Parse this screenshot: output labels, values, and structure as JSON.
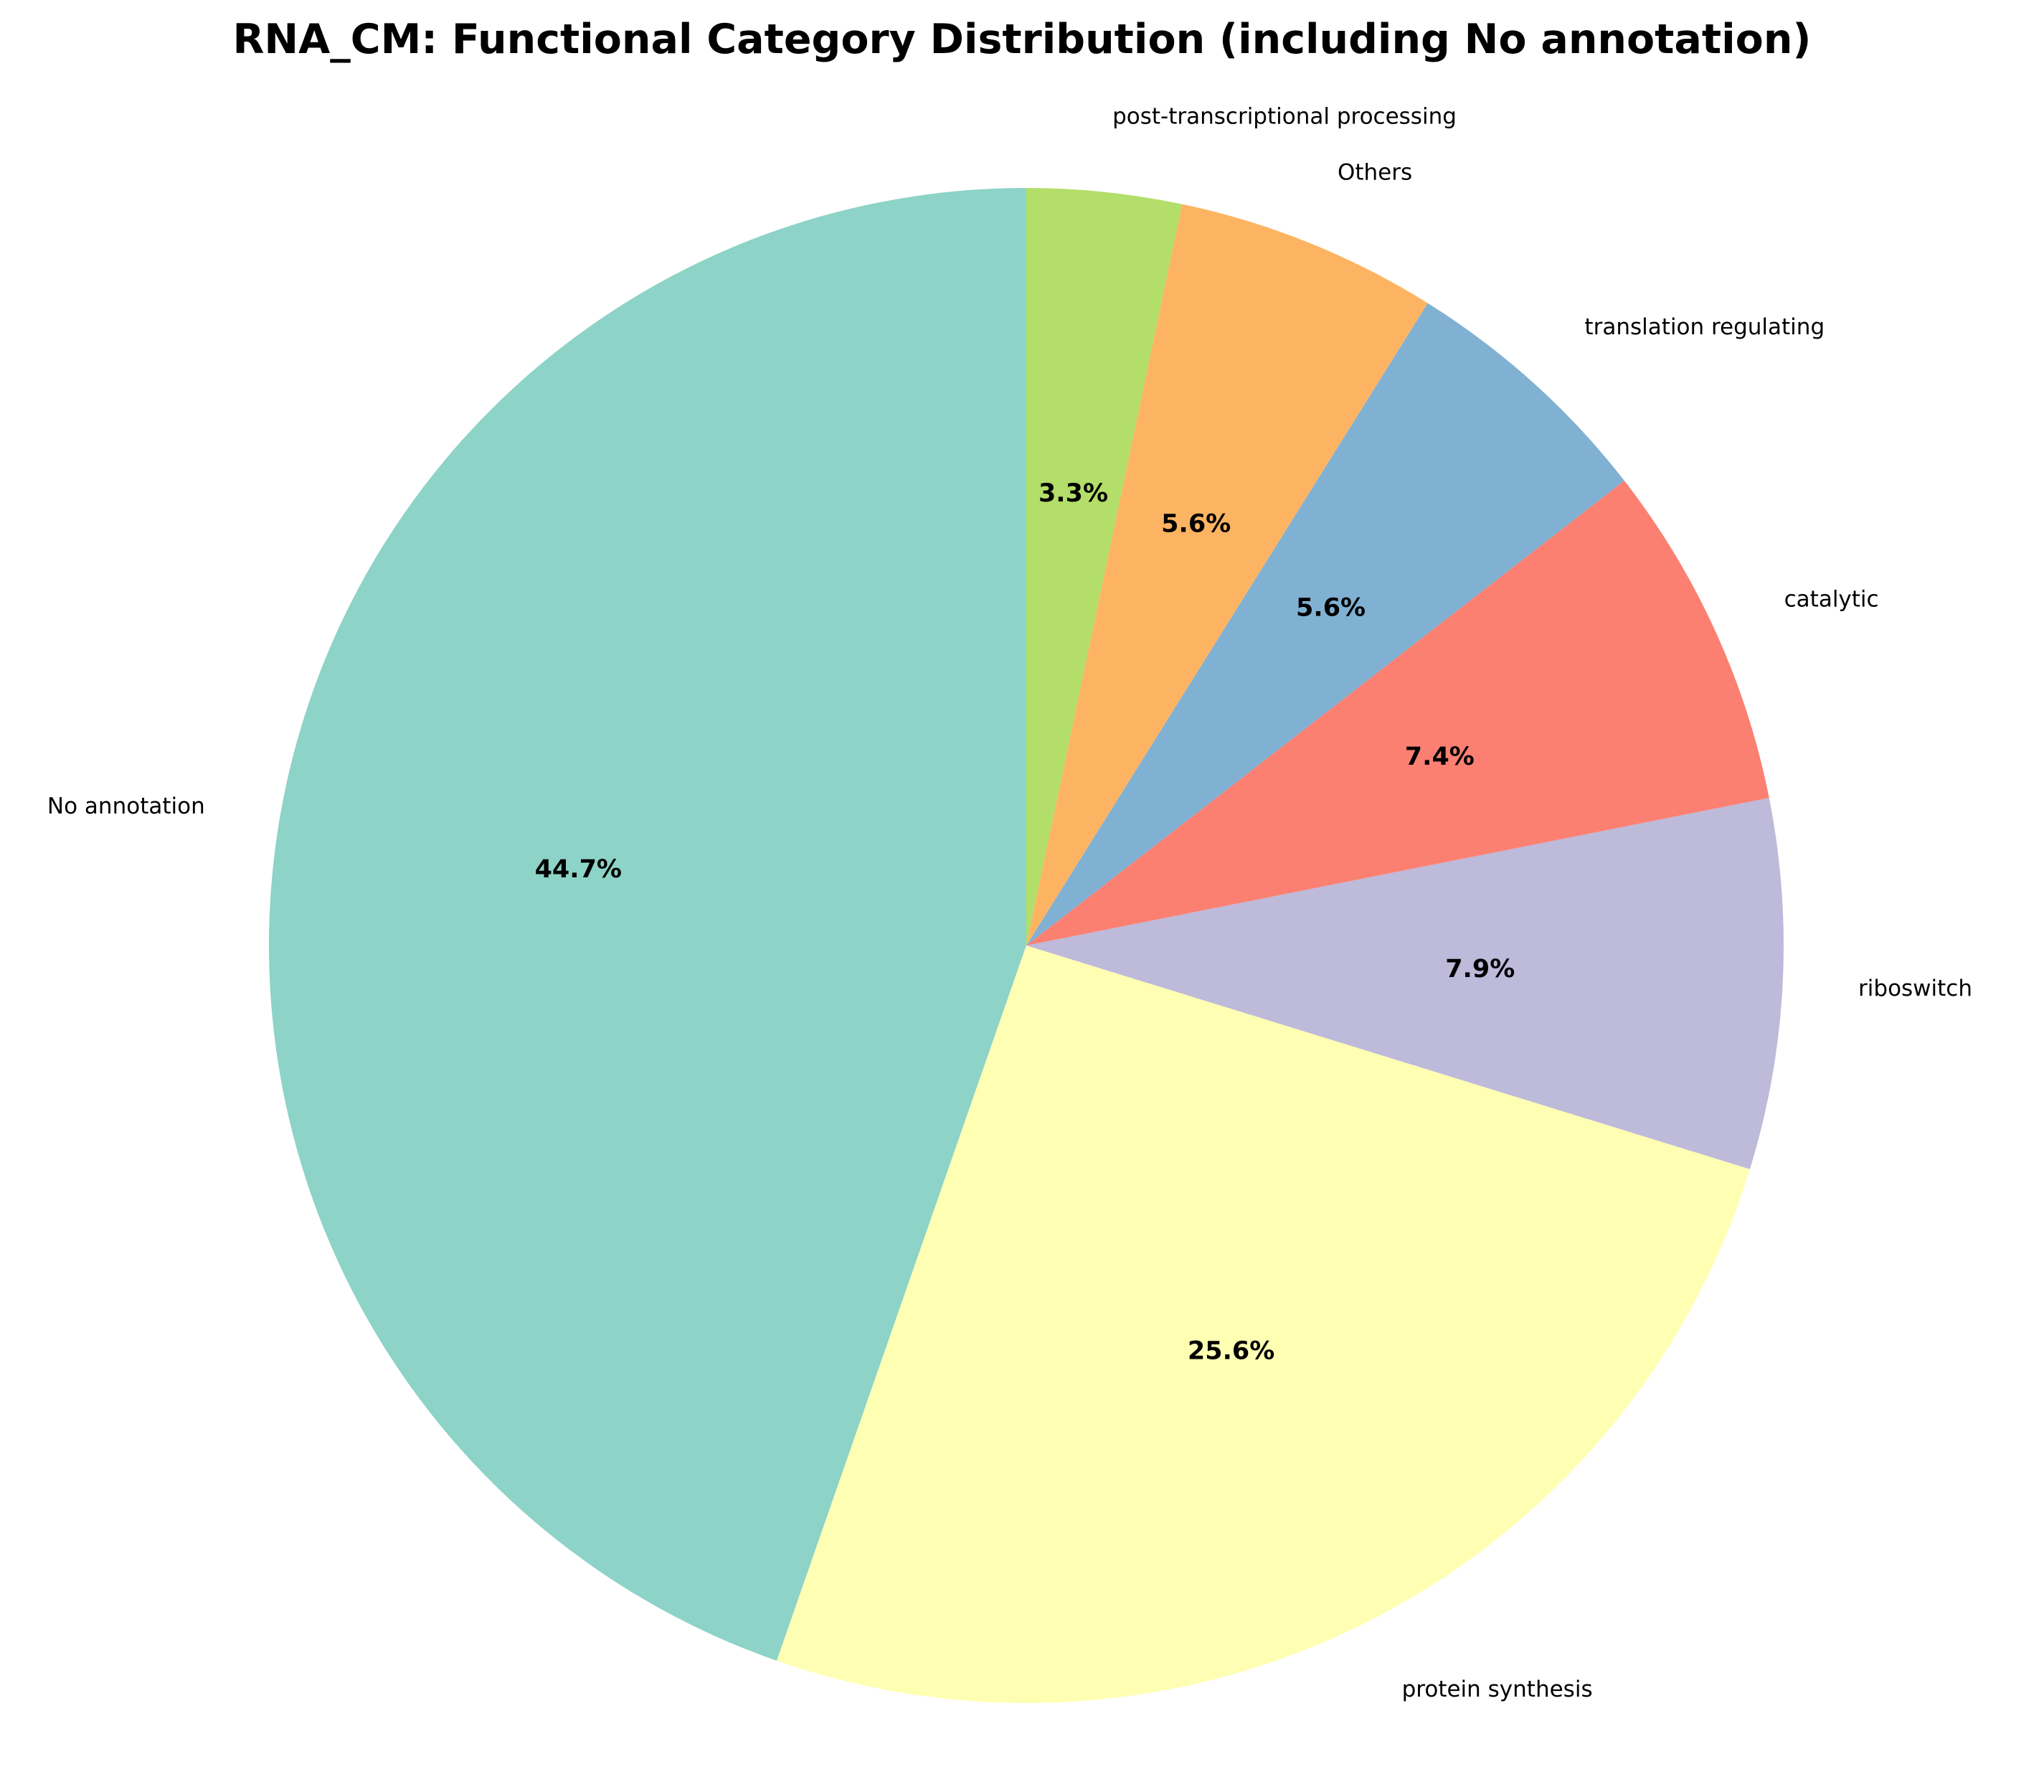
{
  "chart_data": {
    "type": "pie",
    "title": "RNA_CM: Functional Category Distribution (including No annotation)",
    "start_angle_deg": 90,
    "direction": "counterclockwise",
    "slices": [
      {
        "label": "No annotation",
        "value": 44.7,
        "pct_text": "44.7%",
        "color": "#8dd3c7"
      },
      {
        "label": "protein synthesis",
        "value": 25.6,
        "pct_text": "25.6%",
        "color": "#ffffb3"
      },
      {
        "label": "riboswitch",
        "value": 7.9,
        "pct_text": "7.9%",
        "color": "#bebada"
      },
      {
        "label": "catalytic",
        "value": 7.4,
        "pct_text": "7.4%",
        "color": "#fb8072"
      },
      {
        "label": "translation regulating",
        "value": 5.6,
        "pct_text": "5.6%",
        "color": "#80b1d3"
      },
      {
        "label": "Others",
        "value": 5.6,
        "pct_text": "5.6%",
        "color": "#fdb462"
      },
      {
        "label": "post-transcriptional processing",
        "value": 3.3,
        "pct_text": "3.3%",
        "color": "#b3de69"
      }
    ]
  }
}
